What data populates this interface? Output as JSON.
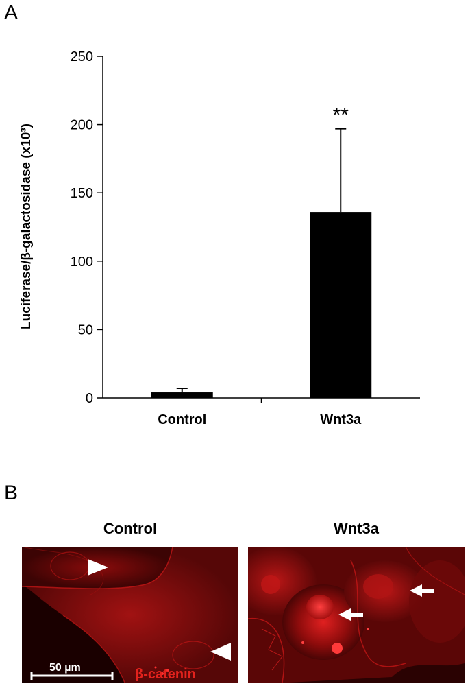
{
  "panels": {
    "a_label": "A",
    "b_label": "B"
  },
  "chart_data": {
    "type": "bar",
    "categories": [
      "Control",
      "Wnt3a"
    ],
    "values": [
      4,
      136
    ],
    "errors": [
      3,
      61
    ],
    "significance": [
      "",
      "**"
    ],
    "ylabel": "Luciferase/β-galactosidase (x10³)",
    "ylim": [
      0,
      250
    ],
    "yticks": [
      0,
      50,
      100,
      150,
      200,
      250
    ],
    "grid": false,
    "bar_color": "#000000"
  },
  "micrographs": {
    "control_title": "Control",
    "wnt3a_title": "Wnt3a",
    "stain_label": "β-catenin",
    "scale_label": "50 µm",
    "stain_color": "#e3221d"
  }
}
